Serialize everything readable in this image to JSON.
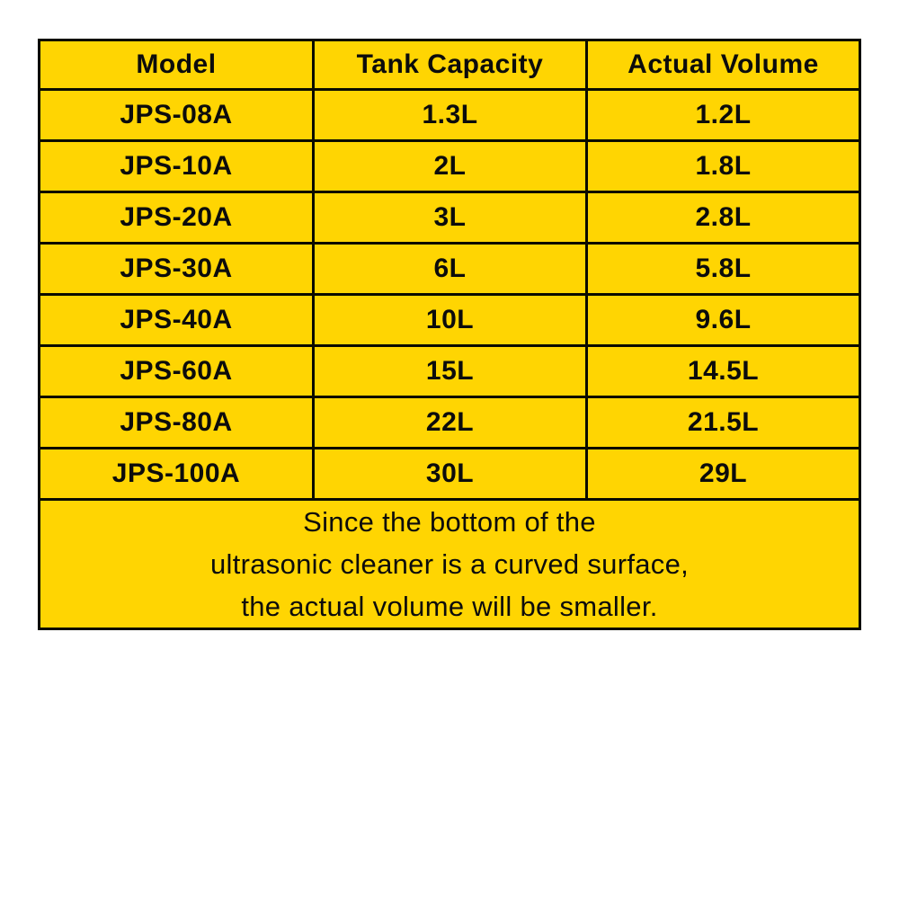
{
  "table": {
    "headers": [
      "Model",
      "Tank Capacity",
      "Actual Volume"
    ],
    "rows": [
      {
        "model": "JPS-08A",
        "capacity": "1.3L",
        "volume": "1.2L"
      },
      {
        "model": "JPS-10A",
        "capacity": "2L",
        "volume": "1.8L"
      },
      {
        "model": "JPS-20A",
        "capacity": "3L",
        "volume": "2.8L"
      },
      {
        "model": "JPS-30A",
        "capacity": "6L",
        "volume": "5.8L"
      },
      {
        "model": "JPS-40A",
        "capacity": "10L",
        "volume": "9.6L"
      },
      {
        "model": "JPS-60A",
        "capacity": "15L",
        "volume": "14.5L"
      },
      {
        "model": "JPS-80A",
        "capacity": "22L",
        "volume": "21.5L"
      },
      {
        "model": "JPS-100A",
        "capacity": "30L",
        "volume": "29L"
      }
    ],
    "note_lines": [
      "Since the bottom of the",
      "ultrasonic cleaner is a curved surface,",
      "the actual volume will be smaller."
    ],
    "colors": {
      "cell_background": "#FFD502",
      "border": "#0b0b00",
      "text": "#0c0c0c"
    }
  }
}
